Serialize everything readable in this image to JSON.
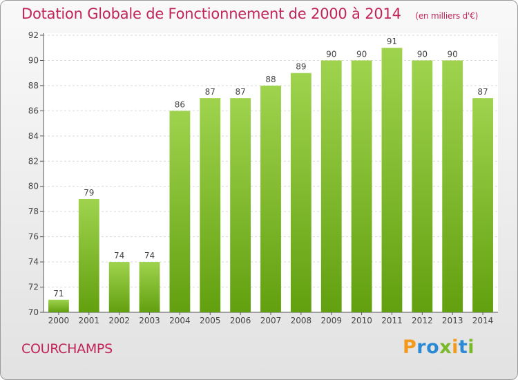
{
  "header": {
    "title": "Dotation Globale de Fonctionnement de 2000 à 2014",
    "unit": "(en milliers d'€)"
  },
  "footer": {
    "commune": "COURCHAMPS",
    "logo": "Proxiti"
  },
  "colors": {
    "title": "#c0245a",
    "bar_light": "#9fd34e",
    "bar_dark": "#62a00f",
    "grid": "#d9d9d9"
  },
  "chart_data": {
    "type": "bar",
    "categories": [
      "2000",
      "2001",
      "2002",
      "2003",
      "2004",
      "2005",
      "2006",
      "2007",
      "2008",
      "2009",
      "2010",
      "2011",
      "2012",
      "2013",
      "2014"
    ],
    "values": [
      71,
      79,
      74,
      74,
      86,
      87,
      87,
      88,
      89,
      90,
      90,
      91,
      90,
      90,
      87
    ],
    "title": "Dotation Globale de Fonctionnement de 2000 à 2014",
    "xlabel": "",
    "ylabel": "",
    "ylim": [
      70,
      92
    ],
    "yticks": [
      70,
      72,
      74,
      76,
      78,
      80,
      82,
      84,
      86,
      88,
      90,
      92
    ],
    "grid": true,
    "legend": "none",
    "data_labels": true
  }
}
